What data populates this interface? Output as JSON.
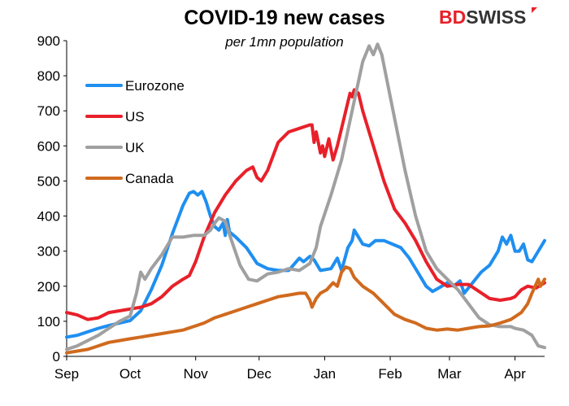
{
  "brand": {
    "part1": "BD",
    "part2": "SWISS"
  },
  "chart_data": {
    "type": "line",
    "title": "COVID-19  new cases",
    "subtitle": "per 1mn population",
    "xlabel": "",
    "ylabel": "",
    "ylim": [
      0,
      900
    ],
    "yticks": [
      0,
      100,
      200,
      300,
      400,
      500,
      600,
      700,
      800,
      900
    ],
    "xlim": [
      0,
      226
    ],
    "x_ticks": [
      {
        "label": "Sep",
        "day": 0
      },
      {
        "label": "Oct",
        "day": 30
      },
      {
        "label": "Nov",
        "day": 61
      },
      {
        "label": "Dec",
        "day": 91
      },
      {
        "label": "Jan",
        "day": 122
      },
      {
        "label": "Feb",
        "day": 153
      },
      {
        "label": "Mar",
        "day": 181
      },
      {
        "label": "Apr",
        "day": 212
      }
    ],
    "grid": false,
    "legend_position": "top-left",
    "series": [
      {
        "name": "Eurozone",
        "color": "#1f8ff0",
        "points": [
          [
            0,
            55
          ],
          [
            5,
            60
          ],
          [
            10,
            70
          ],
          [
            15,
            80
          ],
          [
            20,
            88
          ],
          [
            25,
            95
          ],
          [
            30,
            102
          ],
          [
            35,
            130
          ],
          [
            40,
            190
          ],
          [
            45,
            260
          ],
          [
            50,
            350
          ],
          [
            55,
            430
          ],
          [
            58,
            465
          ],
          [
            60,
            470
          ],
          [
            62,
            460
          ],
          [
            64,
            470
          ],
          [
            66,
            440
          ],
          [
            68,
            400
          ],
          [
            70,
            370
          ],
          [
            72,
            360
          ],
          [
            74,
            380
          ],
          [
            75,
            345
          ],
          [
            76,
            390
          ],
          [
            77,
            355
          ],
          [
            80,
            340
          ],
          [
            85,
            310
          ],
          [
            90,
            265
          ],
          [
            95,
            250
          ],
          [
            100,
            245
          ],
          [
            105,
            245
          ],
          [
            110,
            280
          ],
          [
            112,
            270
          ],
          [
            115,
            285
          ],
          [
            117,
            275
          ],
          [
            120,
            245
          ],
          [
            125,
            250
          ],
          [
            128,
            280
          ],
          [
            130,
            245
          ],
          [
            133,
            310
          ],
          [
            135,
            330
          ],
          [
            136,
            360
          ],
          [
            138,
            340
          ],
          [
            140,
            320
          ],
          [
            143,
            315
          ],
          [
            146,
            330
          ],
          [
            150,
            330
          ],
          [
            154,
            320
          ],
          [
            158,
            310
          ],
          [
            162,
            280
          ],
          [
            166,
            240
          ],
          [
            170,
            200
          ],
          [
            173,
            185
          ],
          [
            176,
            195
          ],
          [
            180,
            210
          ],
          [
            183,
            200
          ],
          [
            186,
            215
          ],
          [
            188,
            180
          ],
          [
            190,
            195
          ],
          [
            192,
            210
          ],
          [
            196,
            240
          ],
          [
            200,
            260
          ],
          [
            204,
            300
          ],
          [
            206,
            340
          ],
          [
            208,
            320
          ],
          [
            210,
            345
          ],
          [
            212,
            300
          ],
          [
            214,
            300
          ],
          [
            216,
            320
          ],
          [
            218,
            275
          ],
          [
            220,
            270
          ],
          [
            222,
            290
          ],
          [
            224,
            310
          ],
          [
            226,
            330
          ]
        ]
      },
      {
        "name": "US",
        "color": "#e8202a",
        "points": [
          [
            0,
            125
          ],
          [
            5,
            118
          ],
          [
            10,
            105
          ],
          [
            15,
            110
          ],
          [
            20,
            125
          ],
          [
            25,
            130
          ],
          [
            30,
            135
          ],
          [
            35,
            140
          ],
          [
            40,
            150
          ],
          [
            45,
            170
          ],
          [
            50,
            200
          ],
          [
            55,
            220
          ],
          [
            58,
            230
          ],
          [
            61,
            270
          ],
          [
            65,
            340
          ],
          [
            70,
            410
          ],
          [
            75,
            460
          ],
          [
            80,
            500
          ],
          [
            85,
            530
          ],
          [
            88,
            540
          ],
          [
            90,
            510
          ],
          [
            92,
            500
          ],
          [
            95,
            530
          ],
          [
            100,
            610
          ],
          [
            105,
            640
          ],
          [
            110,
            650
          ],
          [
            115,
            660
          ],
          [
            116,
            660
          ],
          [
            117,
            610
          ],
          [
            118,
            640
          ],
          [
            120,
            580
          ],
          [
            121,
            600
          ],
          [
            122,
            570
          ],
          [
            124,
            620
          ],
          [
            126,
            560
          ],
          [
            128,
            600
          ],
          [
            130,
            650
          ],
          [
            132,
            700
          ],
          [
            134,
            750
          ],
          [
            135,
            740
          ],
          [
            136,
            760
          ],
          [
            138,
            750
          ],
          [
            140,
            700
          ],
          [
            145,
            600
          ],
          [
            150,
            500
          ],
          [
            155,
            420
          ],
          [
            160,
            380
          ],
          [
            165,
            330
          ],
          [
            170,
            270
          ],
          [
            175,
            220
          ],
          [
            180,
            200
          ],
          [
            185,
            205
          ],
          [
            190,
            205
          ],
          [
            195,
            185
          ],
          [
            200,
            165
          ],
          [
            205,
            160
          ],
          [
            210,
            165
          ],
          [
            212,
            170
          ],
          [
            215,
            190
          ],
          [
            218,
            200
          ],
          [
            222,
            195
          ],
          [
            226,
            210
          ]
        ]
      },
      {
        "name": "UK",
        "color": "#a0a0a0",
        "points": [
          [
            0,
            20
          ],
          [
            5,
            30
          ],
          [
            10,
            45
          ],
          [
            15,
            60
          ],
          [
            20,
            80
          ],
          [
            25,
            100
          ],
          [
            30,
            115
          ],
          [
            33,
            180
          ],
          [
            35,
            240
          ],
          [
            37,
            220
          ],
          [
            40,
            250
          ],
          [
            45,
            290
          ],
          [
            50,
            340
          ],
          [
            55,
            340
          ],
          [
            60,
            345
          ],
          [
            65,
            345
          ],
          [
            68,
            360
          ],
          [
            70,
            380
          ],
          [
            72,
            395
          ],
          [
            75,
            385
          ],
          [
            78,
            330
          ],
          [
            82,
            260
          ],
          [
            86,
            220
          ],
          [
            90,
            215
          ],
          [
            95,
            235
          ],
          [
            100,
            240
          ],
          [
            105,
            250
          ],
          [
            110,
            245
          ],
          [
            115,
            265
          ],
          [
            118,
            310
          ],
          [
            120,
            370
          ],
          [
            125,
            460
          ],
          [
            130,
            560
          ],
          [
            135,
            700
          ],
          [
            140,
            840
          ],
          [
            143,
            885
          ],
          [
            145,
            860
          ],
          [
            147,
            890
          ],
          [
            149,
            860
          ],
          [
            151,
            800
          ],
          [
            155,
            680
          ],
          [
            160,
            530
          ],
          [
            165,
            400
          ],
          [
            170,
            300
          ],
          [
            175,
            250
          ],
          [
            180,
            220
          ],
          [
            185,
            190
          ],
          [
            190,
            150
          ],
          [
            195,
            110
          ],
          [
            200,
            90
          ],
          [
            205,
            85
          ],
          [
            210,
            85
          ],
          [
            212,
            80
          ],
          [
            216,
            75
          ],
          [
            220,
            60
          ],
          [
            223,
            30
          ],
          [
            226,
            25
          ]
        ]
      },
      {
        "name": "Canada",
        "color": "#d06a1e",
        "points": [
          [
            0,
            10
          ],
          [
            5,
            15
          ],
          [
            10,
            20
          ],
          [
            15,
            30
          ],
          [
            20,
            40
          ],
          [
            25,
            45
          ],
          [
            30,
            50
          ],
          [
            35,
            55
          ],
          [
            40,
            60
          ],
          [
            45,
            65
          ],
          [
            50,
            70
          ],
          [
            55,
            75
          ],
          [
            60,
            85
          ],
          [
            65,
            95
          ],
          [
            70,
            110
          ],
          [
            75,
            120
          ],
          [
            80,
            130
          ],
          [
            85,
            140
          ],
          [
            90,
            150
          ],
          [
            95,
            160
          ],
          [
            100,
            170
          ],
          [
            105,
            175
          ],
          [
            110,
            180
          ],
          [
            113,
            180
          ],
          [
            115,
            160
          ],
          [
            116,
            140
          ],
          [
            118,
            165
          ],
          [
            120,
            180
          ],
          [
            123,
            190
          ],
          [
            126,
            210
          ],
          [
            128,
            200
          ],
          [
            130,
            240
          ],
          [
            132,
            255
          ],
          [
            134,
            250
          ],
          [
            136,
            225
          ],
          [
            140,
            200
          ],
          [
            145,
            180
          ],
          [
            150,
            150
          ],
          [
            155,
            120
          ],
          [
            160,
            105
          ],
          [
            165,
            95
          ],
          [
            170,
            80
          ],
          [
            175,
            75
          ],
          [
            180,
            78
          ],
          [
            185,
            75
          ],
          [
            190,
            80
          ],
          [
            195,
            85
          ],
          [
            200,
            87
          ],
          [
            205,
            95
          ],
          [
            210,
            105
          ],
          [
            215,
            125
          ],
          [
            218,
            150
          ],
          [
            220,
            180
          ],
          [
            223,
            220
          ],
          [
            224,
            200
          ],
          [
            226,
            220
          ]
        ]
      }
    ]
  }
}
